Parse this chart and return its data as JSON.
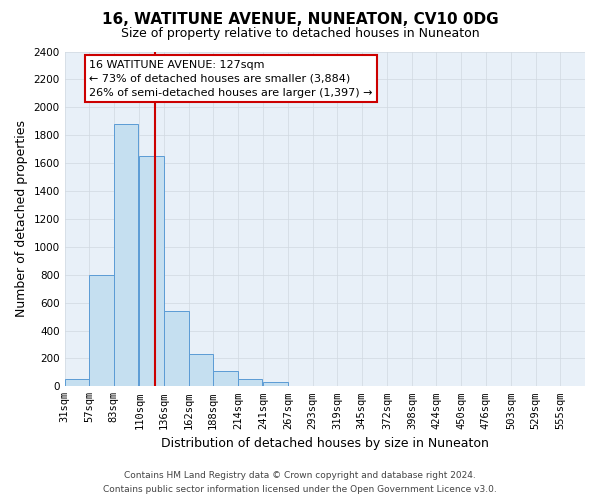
{
  "title": "16, WATITUNE AVENUE, NUNEATON, CV10 0DG",
  "subtitle": "Size of property relative to detached houses in Nuneaton",
  "xlabel": "Distribution of detached houses by size in Nuneaton",
  "ylabel": "Number of detached properties",
  "bin_labels": [
    "31sqm",
    "57sqm",
    "83sqm",
    "110sqm",
    "136sqm",
    "162sqm",
    "188sqm",
    "214sqm",
    "241sqm",
    "267sqm",
    "293sqm",
    "319sqm",
    "345sqm",
    "372sqm",
    "398sqm",
    "424sqm",
    "450sqm",
    "476sqm",
    "503sqm",
    "529sqm",
    "555sqm"
  ],
  "bin_edges": [
    31,
    57,
    83,
    110,
    136,
    162,
    188,
    214,
    241,
    267,
    293,
    319,
    345,
    372,
    398,
    424,
    450,
    476,
    503,
    529,
    555
  ],
  "bar_heights": [
    55,
    800,
    1880,
    1650,
    540,
    235,
    110,
    55,
    30,
    0,
    0,
    0,
    0,
    0,
    0,
    0,
    0,
    0,
    0,
    0
  ],
  "bar_color": "#c5dff0",
  "bar_edge_color": "#5b9bd5",
  "vline_x": 127,
  "vline_color": "#cc0000",
  "ylim": [
    0,
    2400
  ],
  "yticks": [
    0,
    200,
    400,
    600,
    800,
    1000,
    1200,
    1400,
    1600,
    1800,
    2000,
    2200,
    2400
  ],
  "annotation_title": "16 WATITUNE AVENUE: 127sqm",
  "annotation_line1": "← 73% of detached houses are smaller (3,884)",
  "annotation_line2": "26% of semi-detached houses are larger (1,397) →",
  "annotation_box_color": "#ffffff",
  "annotation_box_edge": "#cc0000",
  "footer_line1": "Contains HM Land Registry data © Crown copyright and database right 2024.",
  "footer_line2": "Contains public sector information licensed under the Open Government Licence v3.0.",
  "grid_color": "#d0d8e0",
  "background_color": "#e8f0f8",
  "title_fontsize": 11,
  "subtitle_fontsize": 9,
  "axis_label_fontsize": 9,
  "tick_fontsize": 7.5,
  "footer_fontsize": 6.5,
  "annotation_fontsize": 8
}
